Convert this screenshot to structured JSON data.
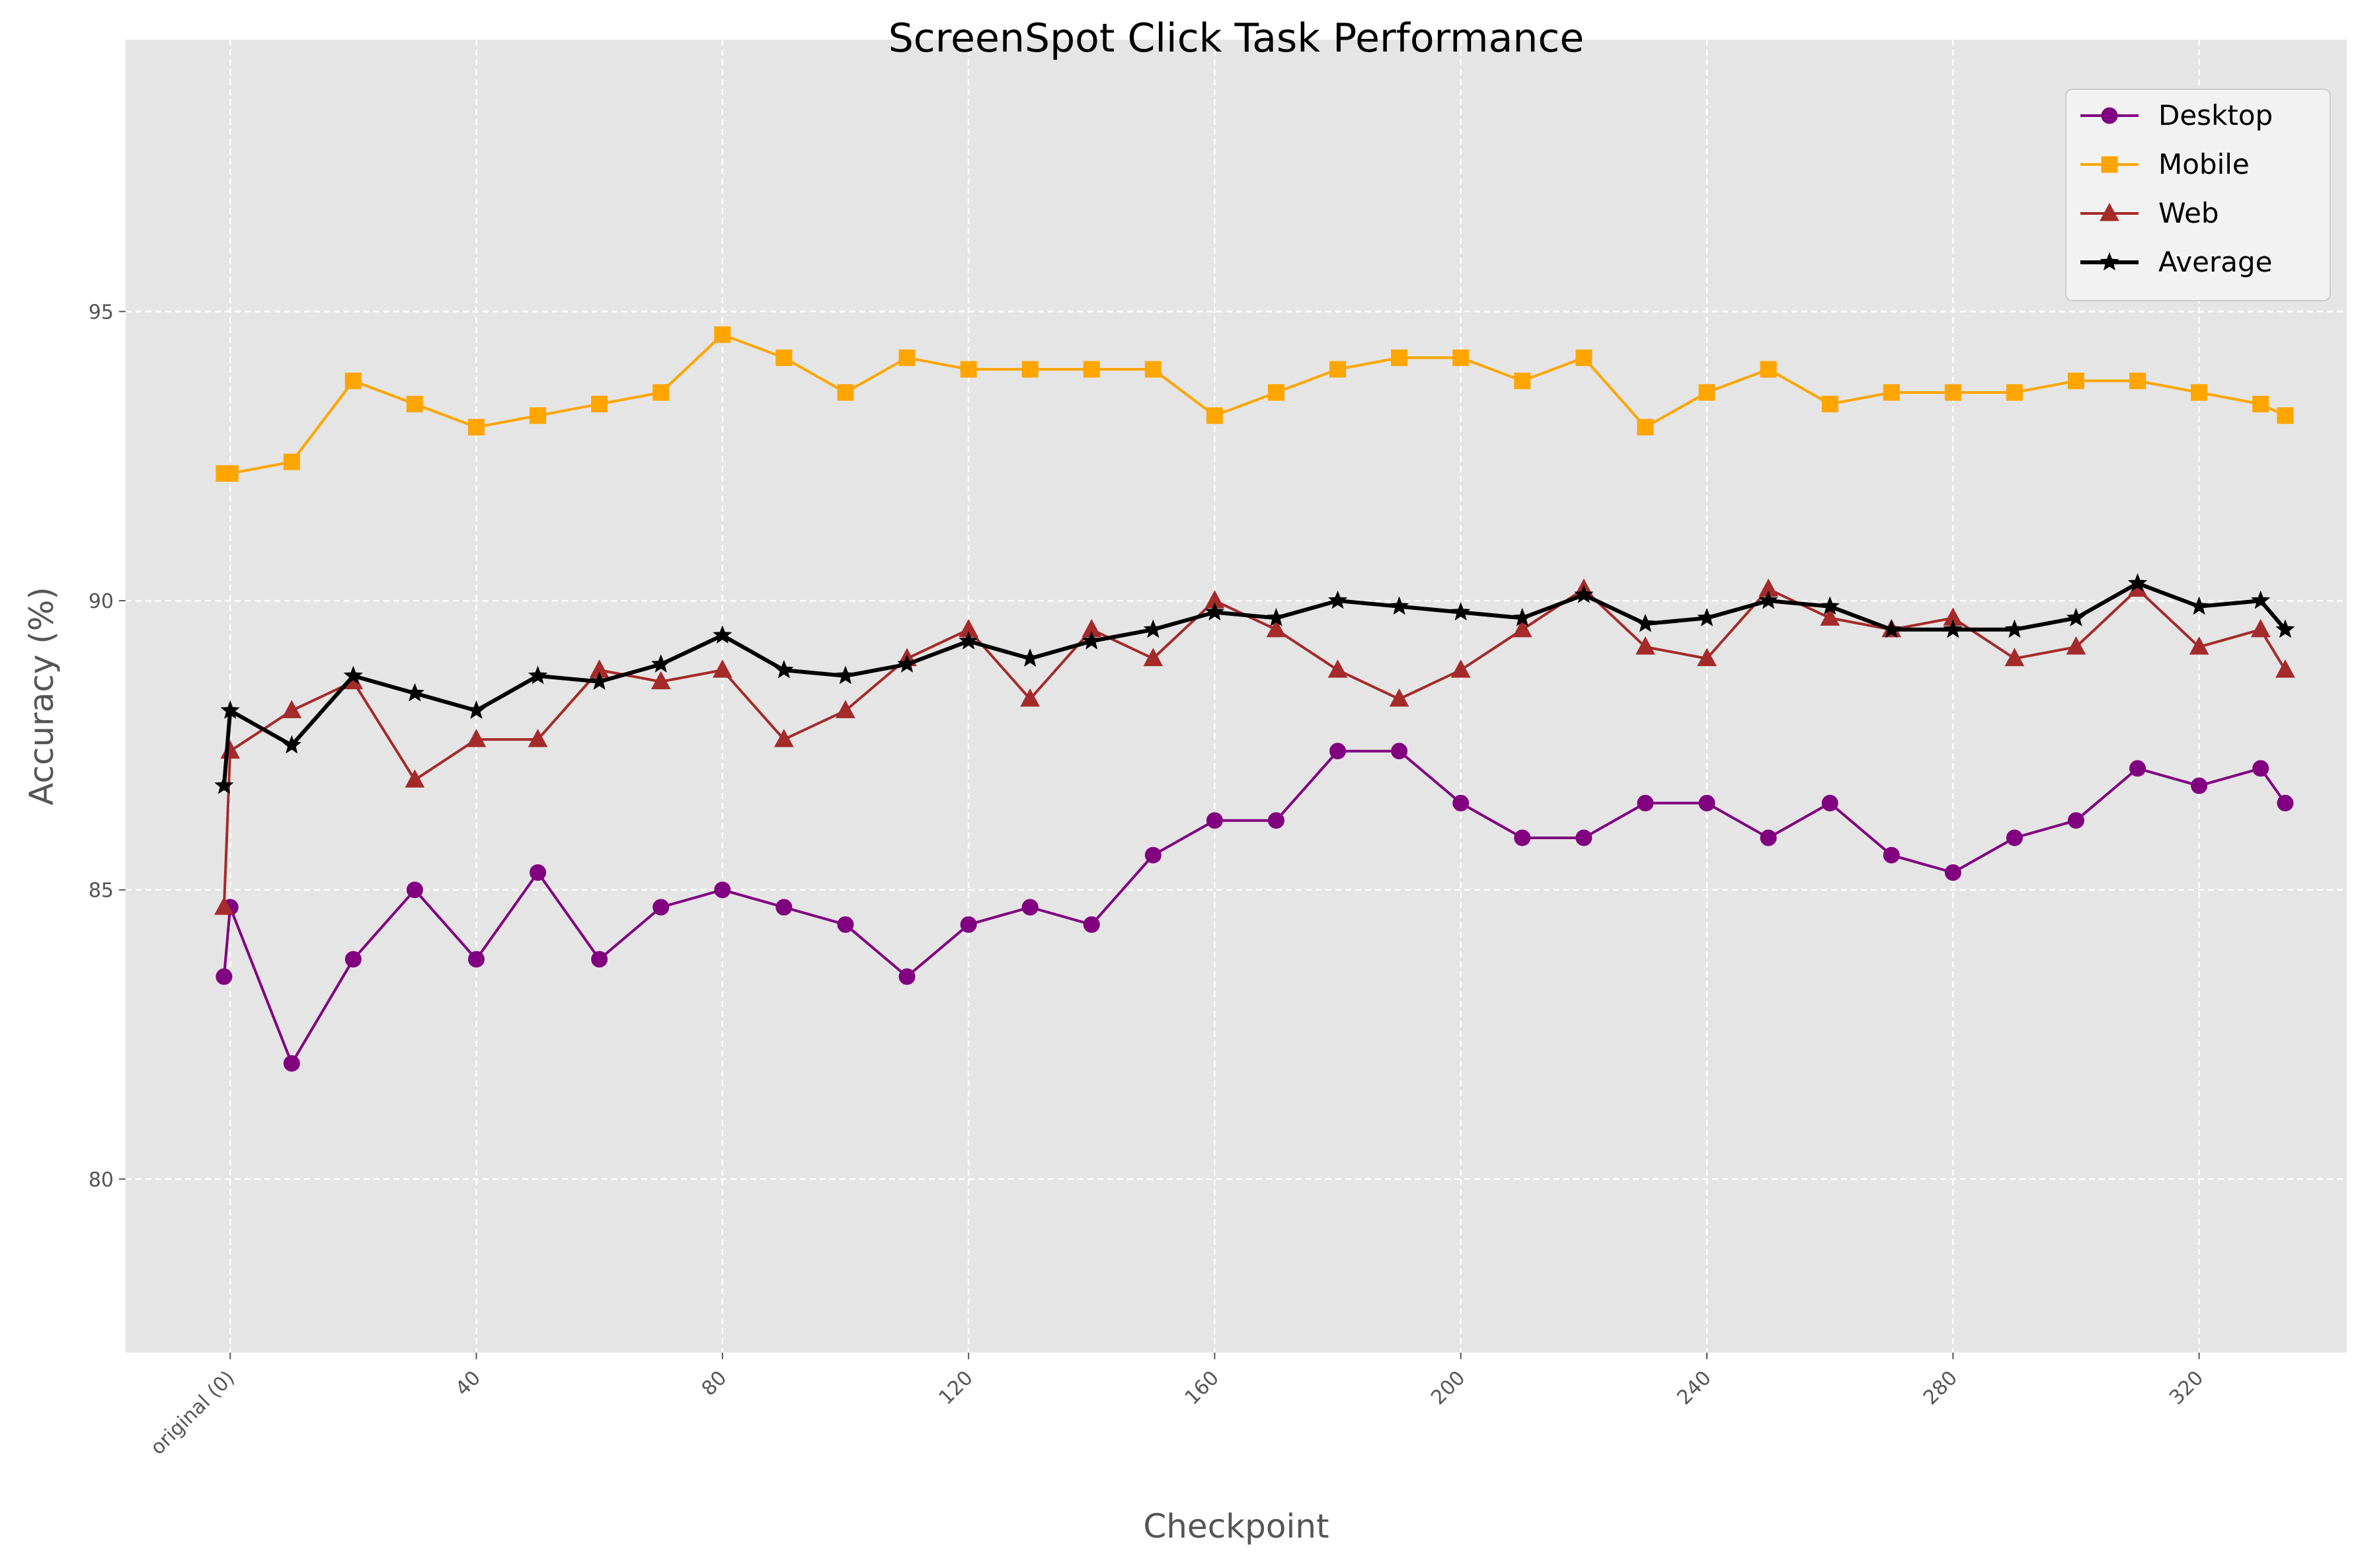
{
  "colors": {
    "plot_background": "#e5e5e5",
    "grid": "#ffffff",
    "desktop": "#800080",
    "mobile": "#ffa500",
    "web": "#a52a2a",
    "average": "#000000"
  },
  "chart_data": {
    "type": "line",
    "title": "ScreenSpot Click Task Performance",
    "xlabel": "Checkpoint",
    "ylabel": "Accuracy (%)",
    "xlim": [
      -17,
      344
    ],
    "ylim": [
      77,
      99.7
    ],
    "grid": true,
    "legend_position": "top-right",
    "x_ticks": [
      {
        "value": 0,
        "label": "original (0)"
      },
      {
        "value": 40,
        "label": "40"
      },
      {
        "value": 80,
        "label": "80"
      },
      {
        "value": 120,
        "label": "120"
      },
      {
        "value": 160,
        "label": "160"
      },
      {
        "value": 200,
        "label": "200"
      },
      {
        "value": 240,
        "label": "240"
      },
      {
        "value": 280,
        "label": "280"
      },
      {
        "value": 320,
        "label": "320"
      }
    ],
    "y_ticks": [
      {
        "value": 80,
        "label": "80"
      },
      {
        "value": 85,
        "label": "85"
      },
      {
        "value": 90,
        "label": "90"
      },
      {
        "value": 95,
        "label": "95"
      }
    ],
    "x": [
      -1,
      0,
      10,
      20,
      30,
      40,
      50,
      60,
      70,
      80,
      90,
      100,
      110,
      120,
      130,
      140,
      150,
      160,
      170,
      180,
      190,
      200,
      210,
      220,
      230,
      240,
      250,
      260,
      270,
      280,
      290,
      300,
      310,
      320,
      330,
      334
    ],
    "series": [
      {
        "name": "Desktop",
        "color_key": "desktop",
        "marker": "circle",
        "values": [
          83.5,
          84.7,
          82.0,
          83.8,
          85.0,
          83.8,
          85.3,
          83.8,
          84.7,
          85.0,
          84.7,
          84.4,
          83.5,
          84.4,
          84.7,
          84.4,
          85.6,
          86.2,
          86.2,
          87.4,
          87.4,
          86.5,
          85.9,
          85.9,
          86.5,
          86.5,
          85.9,
          86.5,
          85.6,
          85.3,
          85.9,
          86.2,
          87.1,
          86.8,
          87.1,
          86.5
        ]
      },
      {
        "name": "Mobile",
        "color_key": "mobile",
        "marker": "square",
        "values": [
          92.2,
          92.2,
          92.4,
          93.8,
          93.4,
          93.0,
          93.2,
          93.4,
          93.6,
          94.6,
          94.2,
          93.6,
          94.2,
          94.0,
          94.0,
          94.0,
          94.0,
          93.2,
          93.6,
          94.0,
          94.2,
          94.2,
          93.8,
          94.2,
          93.0,
          93.6,
          94.0,
          93.4,
          93.6,
          93.6,
          93.6,
          93.8,
          93.8,
          93.6,
          93.4,
          93.2
        ]
      },
      {
        "name": "Web",
        "color_key": "web",
        "marker": "triangle",
        "values": [
          84.7,
          87.4,
          88.1,
          88.6,
          86.9,
          87.6,
          87.6,
          88.8,
          88.6,
          88.8,
          87.6,
          88.1,
          89.0,
          89.5,
          88.3,
          89.5,
          89.0,
          90.0,
          89.5,
          88.8,
          88.3,
          88.8,
          89.5,
          90.2,
          89.2,
          89.0,
          90.2,
          89.7,
          89.5,
          89.7,
          89.0,
          89.2,
          90.2,
          89.2,
          89.5,
          88.8
        ]
      },
      {
        "name": "Average",
        "color_key": "average",
        "marker": "star",
        "values": [
          86.8,
          88.1,
          87.5,
          88.7,
          88.4,
          88.1,
          88.7,
          88.6,
          88.9,
          89.4,
          88.8,
          88.7,
          88.9,
          89.3,
          89.0,
          89.3,
          89.5,
          89.8,
          89.7,
          90.0,
          89.9,
          89.8,
          89.7,
          90.1,
          89.6,
          89.7,
          90.0,
          89.9,
          89.5,
          89.5,
          89.5,
          89.7,
          90.3,
          89.9,
          90.0,
          89.5
        ]
      }
    ]
  }
}
